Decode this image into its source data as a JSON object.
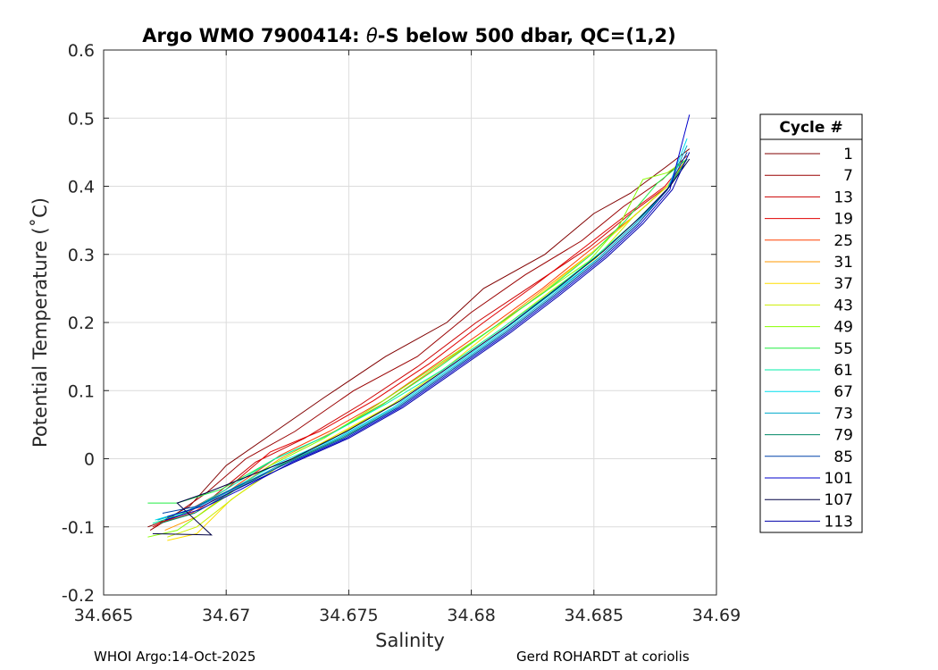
{
  "chart_data": {
    "type": "line",
    "title_parts": [
      "Argo WMO 7900414: ",
      "θ",
      "-S below 500 dbar,  QC=(1,2)"
    ],
    "xlabel": "Salinity",
    "ylabel": "Potential Temperature (˚C)",
    "xlim": [
      34.665,
      34.69
    ],
    "ylim": [
      -0.2,
      0.6
    ],
    "xticks": [
      34.665,
      34.67,
      34.675,
      34.68,
      34.685,
      34.69
    ],
    "xtick_labels": [
      "34.665",
      "34.67",
      "34.675",
      "34.68",
      "34.685",
      "34.69"
    ],
    "yticks": [
      -0.2,
      -0.1,
      0,
      0.1,
      0.2,
      0.3,
      0.4,
      0.5,
      0.6
    ],
    "ytick_labels": [
      "-0.2",
      "-0.1",
      "0",
      "0.1",
      "0.2",
      "0.3",
      "0.4",
      "0.5",
      "0.6"
    ],
    "grid": true,
    "legend": {
      "title": "Cycle #",
      "placement": "right",
      "entries": [
        {
          "label": "1",
          "color": "#800000"
        },
        {
          "label": "7",
          "color": "#990000"
        },
        {
          "label": "13",
          "color": "#cc0000"
        },
        {
          "label": "19",
          "color": "#e00000"
        },
        {
          "label": "25",
          "color": "#ff4000"
        },
        {
          "label": "31",
          "color": "#ff9900"
        },
        {
          "label": "37",
          "color": "#ffdd00"
        },
        {
          "label": "43",
          "color": "#ccee00"
        },
        {
          "label": "49",
          "color": "#88ff00"
        },
        {
          "label": "55",
          "color": "#22ee44"
        },
        {
          "label": "61",
          "color": "#00eeaa"
        },
        {
          "label": "67",
          "color": "#00ddee"
        },
        {
          "label": "73",
          "color": "#00aacc"
        },
        {
          "label": "79",
          "color": "#008866"
        },
        {
          "label": "85",
          "color": "#0044aa"
        },
        {
          "label": "101",
          "color": "#0000cc"
        },
        {
          "label": "107",
          "color": "#000044"
        },
        {
          "label": "113",
          "color": "#0000aa"
        }
      ]
    },
    "series": [
      {
        "cycle": "1",
        "color": "#800000",
        "x": [
          34.6668,
          34.6672,
          34.6685,
          34.67,
          34.672,
          34.674,
          34.6765,
          34.679,
          34.6805,
          34.683,
          34.685,
          34.6865,
          34.688,
          34.6889
        ],
        "y": [
          -0.1,
          -0.095,
          -0.07,
          -0.01,
          0.04,
          0.09,
          0.15,
          0.2,
          0.25,
          0.3,
          0.36,
          0.39,
          0.43,
          0.455
        ]
      },
      {
        "cycle": "7",
        "color": "#990000",
        "x": [
          34.6669,
          34.6678,
          34.6692,
          34.6708,
          34.6728,
          34.6752,
          34.6778,
          34.68,
          34.6822,
          34.6845,
          34.6862,
          34.6878,
          34.6888
        ],
        "y": [
          -0.105,
          -0.085,
          -0.05,
          0.0,
          0.04,
          0.1,
          0.15,
          0.215,
          0.27,
          0.32,
          0.37,
          0.41,
          0.445
        ]
      },
      {
        "cycle": "13",
        "color": "#cc0000",
        "x": [
          34.667,
          34.668,
          34.6695,
          34.6712,
          34.6732,
          34.6755,
          34.6778,
          34.6802,
          34.6825,
          34.6848,
          34.6865,
          34.688,
          34.6888
        ],
        "y": [
          -0.1,
          -0.085,
          -0.055,
          -0.005,
          0.03,
          0.08,
          0.135,
          0.2,
          0.255,
          0.31,
          0.36,
          0.4,
          0.44
        ]
      },
      {
        "cycle": "19",
        "color": "#e00000",
        "x": [
          34.6672,
          34.6684,
          34.67,
          34.6718,
          34.6738,
          34.676,
          34.6783,
          34.6805,
          34.6826,
          34.6846,
          34.6864,
          34.6879,
          34.6888
        ],
        "y": [
          -0.095,
          -0.08,
          -0.045,
          0.01,
          0.04,
          0.085,
          0.14,
          0.2,
          0.255,
          0.31,
          0.36,
          0.4,
          0.44
        ]
      },
      {
        "cycle": "25",
        "color": "#ff4000",
        "x": [
          34.6673,
          34.6686,
          34.6702,
          34.6722,
          34.6742,
          34.6764,
          34.6786,
          34.6808,
          34.6829,
          34.6848,
          34.6866,
          34.688,
          34.6888
        ],
        "y": [
          -0.095,
          -0.08,
          -0.045,
          0.005,
          0.04,
          0.085,
          0.14,
          0.195,
          0.25,
          0.305,
          0.355,
          0.4,
          0.44
        ]
      },
      {
        "cycle": "31",
        "color": "#ff9900",
        "x": [
          34.6675,
          34.6688,
          34.6703,
          34.6722,
          34.6744,
          34.6766,
          34.6788,
          34.681,
          34.683,
          34.685,
          34.6866,
          34.688,
          34.6888
        ],
        "y": [
          -0.105,
          -0.085,
          -0.045,
          0.0,
          0.04,
          0.085,
          0.14,
          0.195,
          0.25,
          0.305,
          0.355,
          0.4,
          0.44
        ]
      },
      {
        "cycle": "37",
        "color": "#ffdd00",
        "x": [
          34.6676,
          34.6688,
          34.6702,
          34.6722,
          34.6745,
          34.6768,
          34.679,
          34.6811,
          34.6831,
          34.685,
          34.6866,
          34.688,
          34.6888
        ],
        "y": [
          -0.12,
          -0.11,
          -0.06,
          -0.01,
          0.035,
          0.08,
          0.135,
          0.195,
          0.25,
          0.305,
          0.355,
          0.4,
          0.44
        ]
      },
      {
        "cycle": "43",
        "color": "#ccee00",
        "x": [
          34.6676,
          34.6688,
          34.6704,
          34.6724,
          34.6746,
          34.6768,
          34.679,
          34.6812,
          34.6832,
          34.6851,
          34.6866,
          34.688,
          34.6888
        ],
        "y": [
          -0.115,
          -0.1,
          -0.055,
          -0.005,
          0.035,
          0.08,
          0.135,
          0.19,
          0.245,
          0.295,
          0.355,
          0.4,
          0.44
        ]
      },
      {
        "cycle": "49",
        "color": "#88ff00",
        "x": [
          34.6668,
          34.668,
          34.6698,
          34.6718,
          34.674,
          34.6762,
          34.6785,
          34.6806,
          34.6828,
          34.6848,
          34.686,
          34.687,
          34.688,
          34.6888
        ],
        "y": [
          -0.115,
          -0.105,
          -0.06,
          -0.01,
          0.03,
          0.08,
          0.135,
          0.185,
          0.24,
          0.29,
          0.34,
          0.41,
          0.42,
          0.44
        ]
      },
      {
        "cycle": "55",
        "color": "#22ee44",
        "x": [
          34.6668,
          34.668,
          34.6698,
          34.672,
          34.6742,
          34.6764,
          34.6787,
          34.6808,
          34.683,
          34.6849,
          34.6863,
          34.6876,
          34.6888
        ],
        "y": [
          -0.065,
          -0.065,
          -0.045,
          0.0,
          0.035,
          0.08,
          0.135,
          0.19,
          0.245,
          0.3,
          0.35,
          0.405,
          0.44
        ]
      },
      {
        "cycle": "61",
        "color": "#00eeaa",
        "x": [
          34.667,
          34.6683,
          34.67,
          34.672,
          34.6742,
          34.6765,
          34.6788,
          34.681,
          34.6831,
          34.685,
          34.6866,
          34.688,
          34.6888
        ],
        "y": [
          -0.095,
          -0.08,
          -0.045,
          0.0,
          0.035,
          0.08,
          0.13,
          0.185,
          0.24,
          0.295,
          0.345,
          0.395,
          0.44
        ]
      },
      {
        "cycle": "67",
        "color": "#00ddee",
        "x": [
          34.6671,
          34.6685,
          34.6702,
          34.6722,
          34.6745,
          34.6768,
          34.679,
          34.6812,
          34.6832,
          34.6852,
          34.6867,
          34.688,
          34.6888
        ],
        "y": [
          -0.09,
          -0.075,
          -0.045,
          -0.005,
          0.03,
          0.075,
          0.13,
          0.185,
          0.24,
          0.295,
          0.345,
          0.395,
          0.47
        ]
      },
      {
        "cycle": "73",
        "color": "#00aacc",
        "x": [
          34.6672,
          34.6686,
          34.6703,
          34.6724,
          34.6746,
          34.6769,
          34.6791,
          34.6813,
          34.6833,
          34.6852,
          34.6867,
          34.688,
          34.6888
        ],
        "y": [
          -0.09,
          -0.075,
          -0.045,
          -0.005,
          0.03,
          0.075,
          0.13,
          0.185,
          0.24,
          0.295,
          0.345,
          0.395,
          0.46
        ]
      },
      {
        "cycle": "79",
        "color": "#008866",
        "x": [
          34.6673,
          34.6687,
          34.6704,
          34.6725,
          34.6747,
          34.677,
          34.6792,
          34.6814,
          34.6834,
          34.6853,
          34.6868,
          34.688,
          34.6888
        ],
        "y": [
          -0.095,
          -0.08,
          -0.045,
          -0.005,
          0.03,
          0.075,
          0.13,
          0.185,
          0.24,
          0.295,
          0.345,
          0.395,
          0.44
        ]
      },
      {
        "cycle": "85",
        "color": "#0044aa",
        "x": [
          34.6674,
          34.6688,
          34.6705,
          34.6726,
          34.6748,
          34.677,
          34.6792,
          34.6814,
          34.6834,
          34.6853,
          34.6868,
          34.688,
          34.6888
        ],
        "y": [
          -0.08,
          -0.07,
          -0.04,
          -0.005,
          0.03,
          0.075,
          0.13,
          0.185,
          0.24,
          0.295,
          0.345,
          0.395,
          0.45
        ]
      },
      {
        "cycle": "101",
        "color": "#0000cc",
        "x": [
          34.6675,
          34.6689,
          34.6706,
          34.6727,
          34.6749,
          34.6771,
          34.6793,
          34.6815,
          34.6835,
          34.6854,
          34.6869,
          34.6881,
          34.6889
        ],
        "y": [
          -0.09,
          -0.075,
          -0.045,
          -0.005,
          0.03,
          0.075,
          0.13,
          0.185,
          0.24,
          0.295,
          0.345,
          0.395,
          0.505
        ]
      },
      {
        "cycle": "107",
        "color": "#000044",
        "x": [
          34.667,
          34.6694,
          34.668,
          34.6692,
          34.6706,
          34.6727,
          34.6749,
          34.6771,
          34.6793,
          34.6815,
          34.6835,
          34.6854,
          34.6869,
          34.6881,
          34.6889
        ],
        "y": [
          -0.11,
          -0.112,
          -0.065,
          -0.05,
          -0.03,
          0.0,
          0.04,
          0.085,
          0.14,
          0.195,
          0.25,
          0.305,
          0.355,
          0.4,
          0.44
        ]
      },
      {
        "cycle": "113",
        "color": "#0000aa",
        "x": [
          34.6676,
          34.669,
          34.6707,
          34.6728,
          34.675,
          34.6772,
          34.6794,
          34.6816,
          34.6836,
          34.6855,
          34.687,
          34.6882,
          34.6889
        ],
        "y": [
          -0.085,
          -0.07,
          -0.04,
          -0.005,
          0.03,
          0.075,
          0.13,
          0.185,
          0.24,
          0.295,
          0.345,
          0.395,
          0.45
        ]
      }
    ]
  },
  "footer": {
    "left": "WHOI Argo:14-Oct-2025",
    "right": "Gerd ROHARDT at coriolis"
  }
}
